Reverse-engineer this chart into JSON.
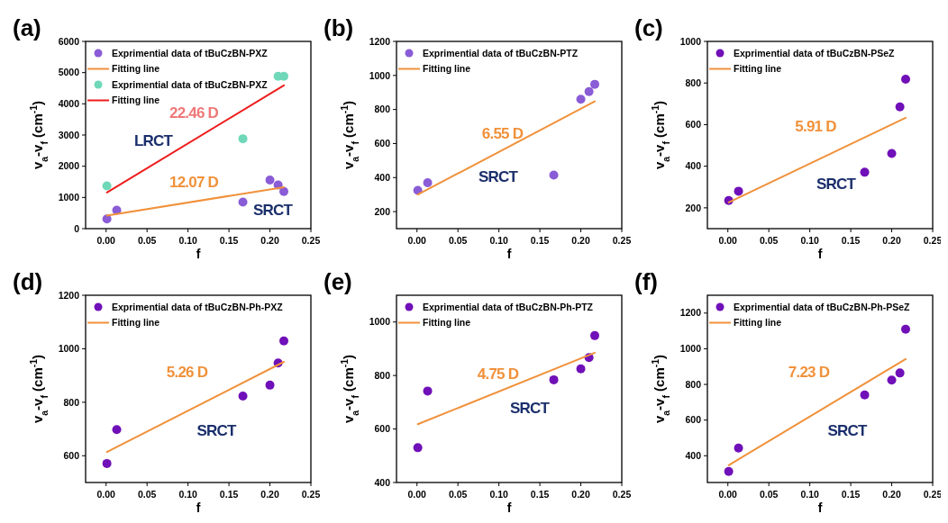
{
  "chart_data": [
    {
      "type": "scatter",
      "title": "(a)",
      "xlabel": "f",
      "ylabel": "v$_{a}$-v$_{f}$ (cm$^{-1}$)",
      "xlim": [
        -0.025,
        0.25
      ],
      "xticks": [
        {
          "value": 0,
          "label": "0.00"
        },
        {
          "value": 0.05,
          "label": "0.05"
        },
        {
          "value": 0.1,
          "label": "0.10"
        },
        {
          "value": 0.15,
          "label": "0.15"
        },
        {
          "value": 0.2,
          "label": "0.20"
        },
        {
          "value": 0.25,
          "label": "0.25"
        }
      ],
      "ylim": [
        0,
        6000
      ],
      "yticks": [
        0,
        1000,
        2000,
        3000,
        4000,
        5000,
        6000
      ],
      "legend": "top left",
      "annotations": [
        "22.46 D",
        "LRCT",
        "12.07 D",
        "SRCT"
      ],
      "series": [
        {
          "name": "Exprimential data of tBuCzBN-PXZ",
          "marker": "circle",
          "color": "#8a5cd6",
          "x": [
            0.001,
            0.013,
            0.167,
            0.2,
            0.21,
            0.217
          ],
          "values": [
            310,
            590,
            850,
            1560,
            1400,
            1190
          ]
        },
        {
          "name": "Fitting line",
          "type": "line",
          "color": "#f0913a",
          "x": [
            0.001,
            0.217
          ],
          "values": [
            420,
            1330
          ]
        },
        {
          "name": "Exprimential data of tBuCzBN-PXZ",
          "marker": "circle",
          "color": "#6fd8b8",
          "x": [
            0.001,
            0.167,
            0.21,
            0.217
          ],
          "values": [
            1370,
            2880,
            4880,
            4880
          ]
        },
        {
          "name": "Fitting line",
          "type": "line",
          "color": "#ee1c1c",
          "x": [
            0.001,
            0.217
          ],
          "values": [
            1160,
            4590
          ]
        }
      ]
    },
    {
      "type": "scatter",
      "title": "(b)",
      "xlabel": "f",
      "ylabel": "v$_{a}$-v$_{f}$ (cm$^{-1}$)",
      "xlim": [
        -0.025,
        0.25
      ],
      "xticks": [
        {
          "value": 0,
          "label": "0.00"
        },
        {
          "value": 0.05,
          "label": "0.05"
        },
        {
          "value": 0.1,
          "label": "0.10"
        },
        {
          "value": 0.15,
          "label": "0.15"
        },
        {
          "value": 0.2,
          "label": "0.20"
        },
        {
          "value": 0.25,
          "label": "0.25"
        }
      ],
      "ylim": [
        100,
        1200
      ],
      "yticks": [
        200,
        400,
        600,
        800,
        1000,
        1200
      ],
      "legend": "top left",
      "annotations": [
        "6.55 D",
        "SRCT"
      ],
      "series": [
        {
          "name": "Exprimential data of tBuCzBN-PTZ",
          "marker": "circle",
          "color": "#8a5cd6",
          "x": [
            0.001,
            0.013,
            0.167,
            0.2,
            0.21,
            0.217
          ],
          "values": [
            325,
            370,
            415,
            860,
            905,
            948
          ]
        },
        {
          "name": "Fitting line",
          "type": "line",
          "color": "#f0913a",
          "x": [
            0.001,
            0.217
          ],
          "values": [
            300,
            848
          ]
        }
      ]
    },
    {
      "type": "scatter",
      "title": "(c)",
      "xlabel": "f",
      "ylabel": "v$_{a}$-v$_{f}$ (cm$^{-1}$)",
      "xlim": [
        -0.025,
        0.25
      ],
      "xticks": [
        {
          "value": 0,
          "label": "0.00"
        },
        {
          "value": 0.05,
          "label": "0.05"
        },
        {
          "value": 0.1,
          "label": "0.10"
        },
        {
          "value": 0.15,
          "label": "0.15"
        },
        {
          "value": 0.2,
          "label": "0.20"
        },
        {
          "value": 0.25,
          "label": "0.25"
        }
      ],
      "ylim": [
        100,
        1000
      ],
      "yticks": [
        200,
        400,
        600,
        800,
        1000
      ],
      "legend": "top left",
      "annotations": [
        "5.91 D",
        "SRCT"
      ],
      "series": [
        {
          "name": "Exprimential data of tBuCzBN-PSeZ",
          "marker": "circle",
          "color": "#7010b8",
          "x": [
            0.001,
            0.013,
            0.167,
            0.2,
            0.21,
            0.217
          ],
          "values": [
            235,
            280,
            371,
            461,
            685,
            818
          ]
        },
        {
          "name": "Fitting line",
          "type": "line",
          "color": "#f0913a",
          "x": [
            0.001,
            0.217
          ],
          "values": [
            226,
            633
          ]
        }
      ]
    },
    {
      "type": "scatter",
      "title": "(d)",
      "xlabel": "f",
      "ylabel": "v$_{a}$-v$_{f}$ (cm$^{-1}$)",
      "xlim": [
        -0.025,
        0.25
      ],
      "xticks": [
        {
          "value": 0,
          "label": "0.00"
        },
        {
          "value": 0.05,
          "label": "0.05"
        },
        {
          "value": 0.1,
          "label": "0.10"
        },
        {
          "value": 0.15,
          "label": "0.15"
        },
        {
          "value": 0.2,
          "label": "0.20"
        },
        {
          "value": 0.25,
          "label": "0.25"
        }
      ],
      "ylim": [
        500,
        1200
      ],
      "yticks": [
        600,
        800,
        1000,
        1200
      ],
      "legend": "top left",
      "annotations": [
        "5.26 D",
        "SRCT"
      ],
      "series": [
        {
          "name": "Exprimential data of tBuCzBN-Ph-PXZ",
          "marker": "circle",
          "color": "#7010b8",
          "x": [
            0.001,
            0.013,
            0.167,
            0.2,
            0.21,
            0.217
          ],
          "values": [
            571,
            698,
            823,
            864,
            947,
            1029
          ]
        },
        {
          "name": "Fitting line",
          "type": "line",
          "color": "#f0913a",
          "x": [
            0.001,
            0.217
          ],
          "values": [
            614,
            951
          ]
        }
      ]
    },
    {
      "type": "scatter",
      "title": "(e)",
      "xlabel": "f",
      "ylabel": "v$_{a}$-v$_{f}$ (cm$^{-1}$)",
      "xlim": [
        -0.025,
        0.25
      ],
      "xticks": [
        {
          "value": 0,
          "label": "0.00"
        },
        {
          "value": 0.05,
          "label": "0.05"
        },
        {
          "value": 0.1,
          "label": "0.10"
        },
        {
          "value": 0.15,
          "label": "0.15"
        },
        {
          "value": 0.2,
          "label": "0.20"
        },
        {
          "value": 0.25,
          "label": "0.25"
        }
      ],
      "ylim": [
        400,
        1100
      ],
      "yticks": [
        400,
        600,
        800,
        1000
      ],
      "legend": "top left",
      "annotations": [
        "4.75 D",
        "SRCT"
      ],
      "series": [
        {
          "name": "Exprimential data of tBuCzBN-Ph-PTZ",
          "marker": "circle",
          "color": "#7010b8",
          "x": [
            0.001,
            0.013,
            0.167,
            0.2,
            0.21,
            0.217
          ],
          "values": [
            530,
            742,
            784,
            825,
            867,
            949
          ]
        },
        {
          "name": "Fitting line",
          "type": "line",
          "color": "#f0913a",
          "x": [
            0.001,
            0.217
          ],
          "values": [
            618,
            885
          ]
        }
      ]
    },
    {
      "type": "scatter",
      "title": "(f)",
      "xlabel": "f",
      "ylabel": "v$_{a}$-v$_{f}$ (cm$^{-1}$)",
      "xlim": [
        -0.025,
        0.25
      ],
      "xticks": [
        {
          "value": 0,
          "label": "0.00"
        },
        {
          "value": 0.05,
          "label": "0.05"
        },
        {
          "value": 0.1,
          "label": "0.10"
        },
        {
          "value": 0.15,
          "label": "0.15"
        },
        {
          "value": 0.2,
          "label": "0.20"
        },
        {
          "value": 0.25,
          "label": "0.25"
        }
      ],
      "ylim": [
        250,
        1300
      ],
      "yticks": [
        400,
        600,
        800,
        1000,
        1200
      ],
      "legend": "top left",
      "annotations": [
        "7.23 D",
        "SRCT"
      ],
      "series": [
        {
          "name": "Exprimential data of tBuCzBN-Ph-PSeZ",
          "marker": "circle",
          "color": "#7010b8",
          "x": [
            0.001,
            0.013,
            0.167,
            0.2,
            0.21,
            0.217
          ],
          "values": [
            312,
            443,
            741,
            824,
            864,
            1109
          ]
        },
        {
          "name": "Fitting line",
          "type": "line",
          "color": "#f0913a",
          "x": [
            0.001,
            0.217
          ],
          "values": [
            347,
            942
          ]
        }
      ]
    }
  ]
}
